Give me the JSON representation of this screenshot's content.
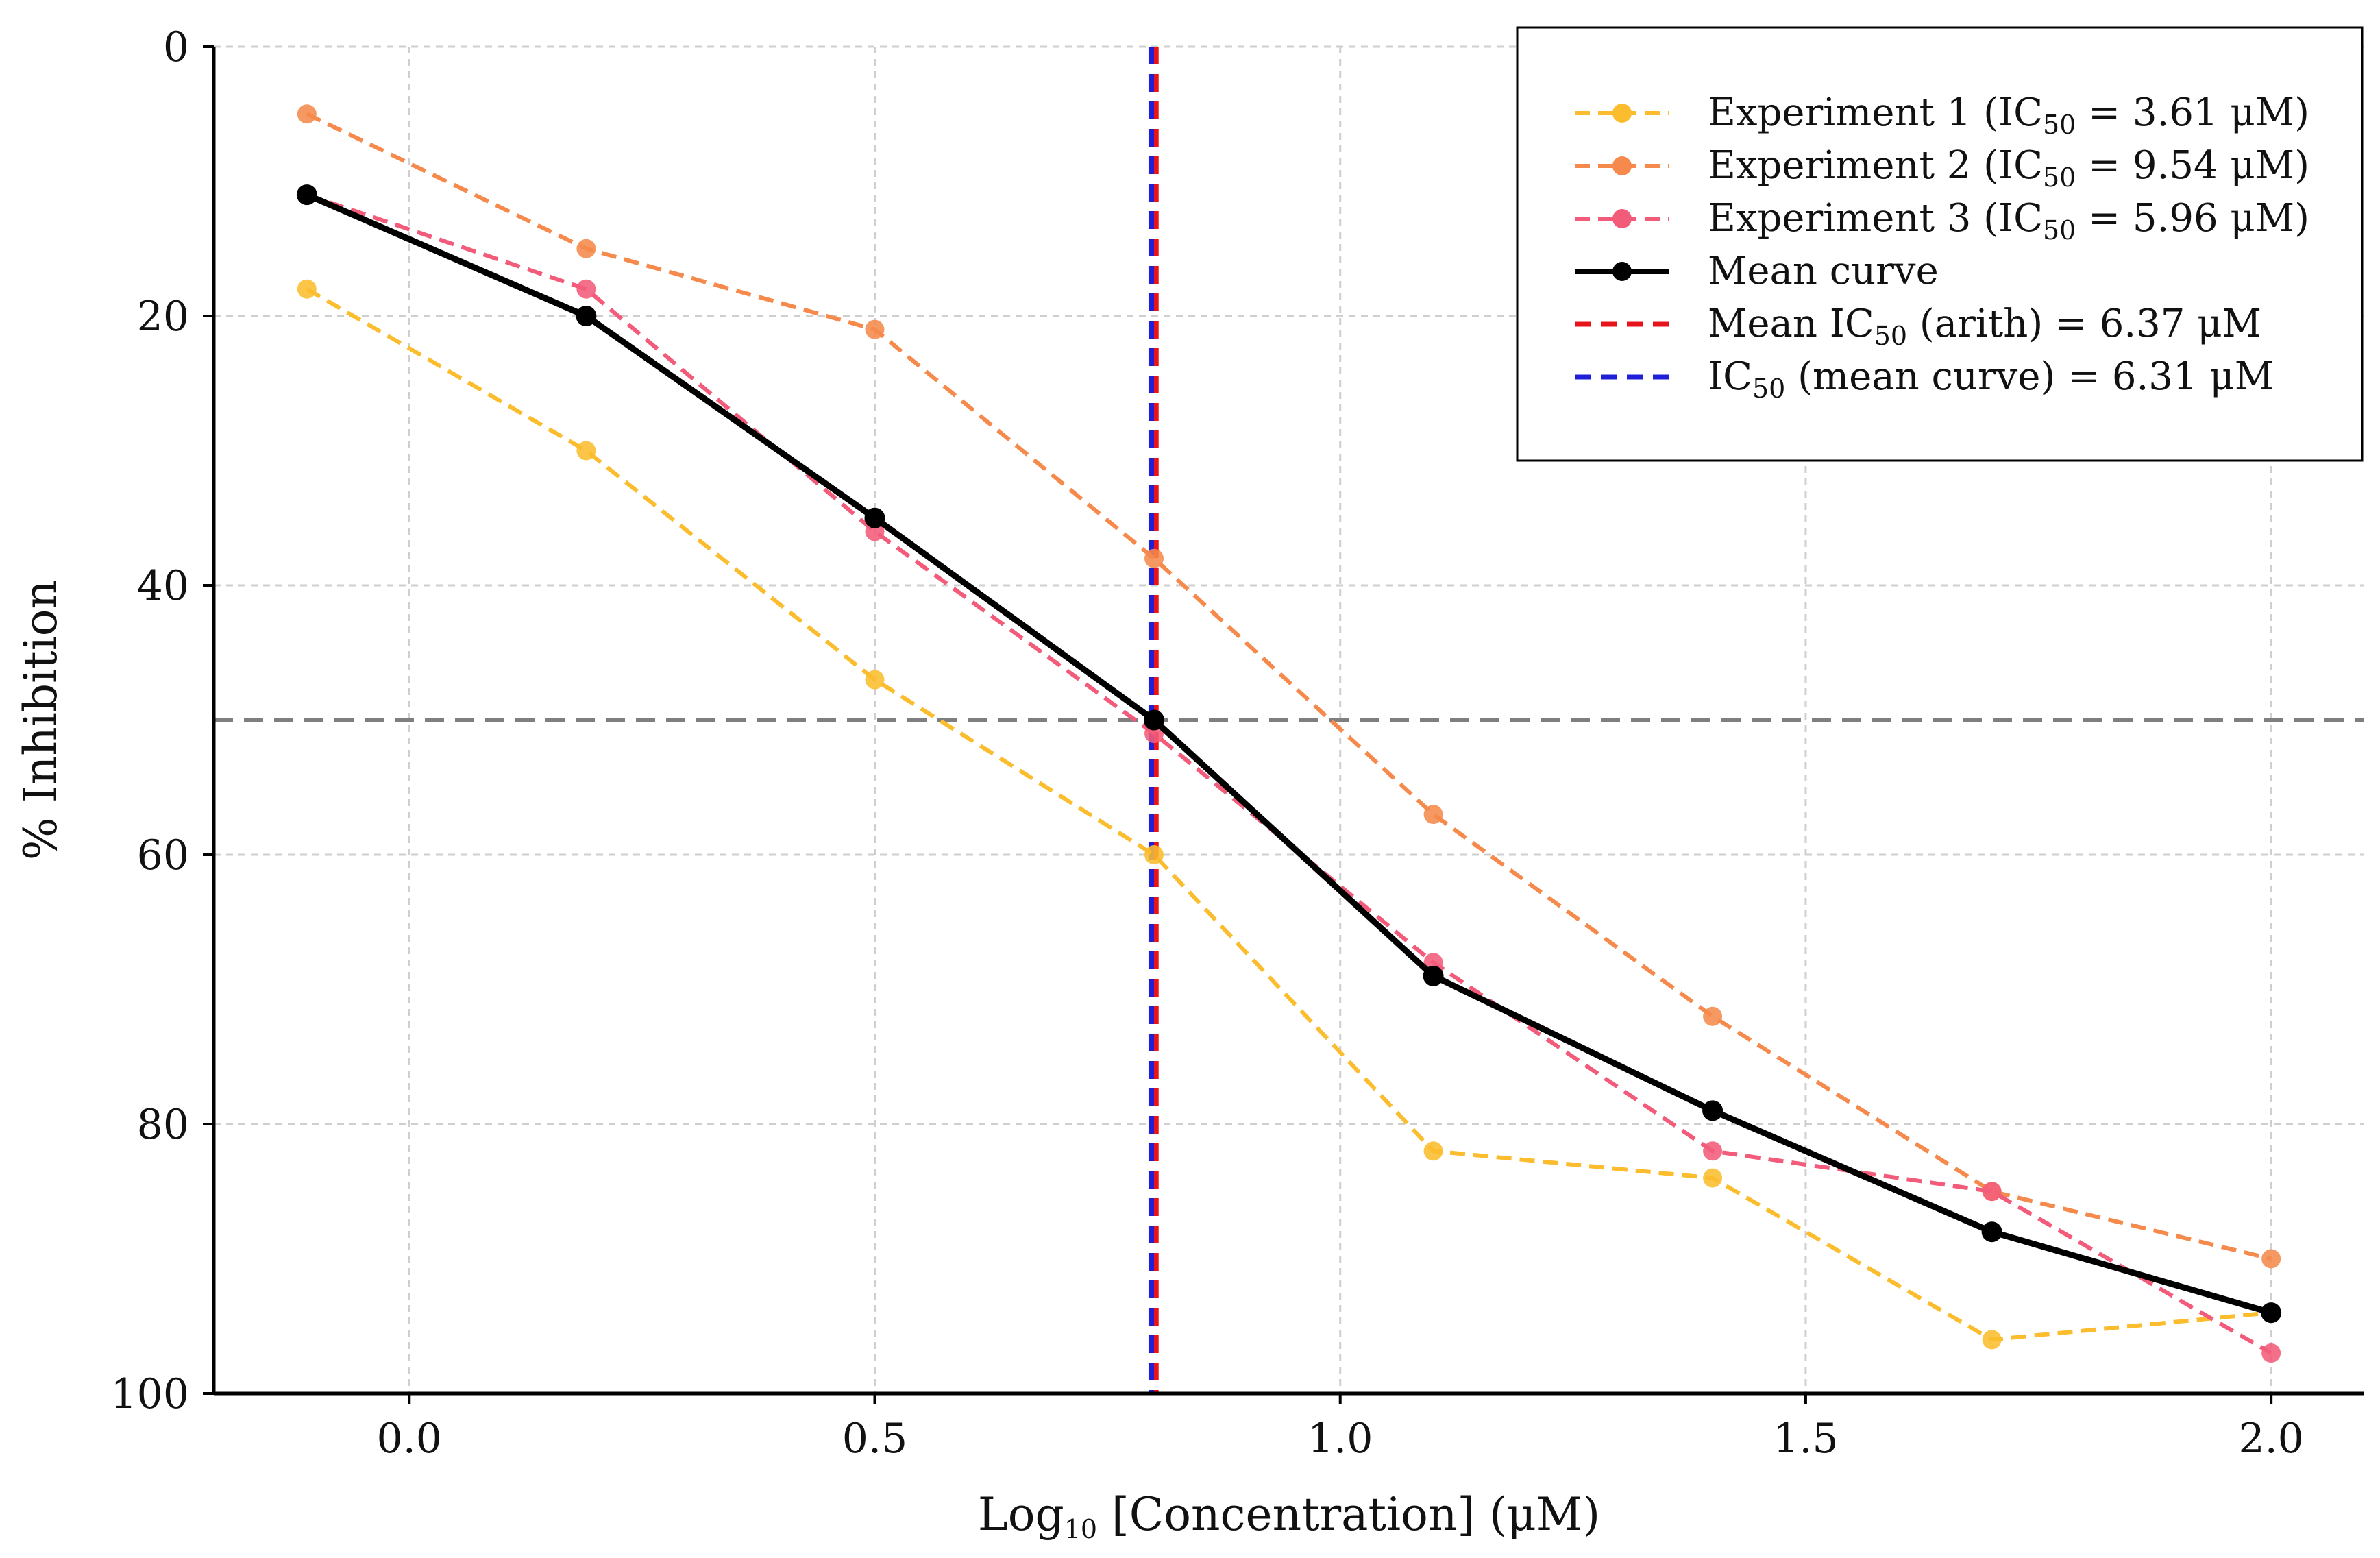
{
  "chart_data": {
    "type": "line",
    "xlabel": {
      "main": "Log",
      "sub": "10",
      "rest": " [Concentration] (μM)"
    },
    "ylabel": "% Inhibition",
    "xlim": [
      -0.21,
      2.1
    ],
    "ylim": [
      0,
      100
    ],
    "y_inverted": true,
    "x_ticks": [
      0.0,
      0.5,
      1.0,
      1.5,
      2.0
    ],
    "x_tick_labels": [
      "0.0",
      "0.5",
      "1.0",
      "1.5",
      "2.0"
    ],
    "y_ticks": [
      0,
      20,
      40,
      60,
      80,
      100
    ],
    "y_tick_labels": [
      "0",
      "20",
      "40",
      "60",
      "80",
      "100"
    ],
    "grid": true,
    "legend_position": "top-right",
    "x": [
      -0.11,
      0.19,
      0.5,
      0.8,
      1.1,
      1.4,
      1.7,
      2.0
    ],
    "series": [
      {
        "key": "exp1",
        "legend": {
          "main": "Experiment 1 (IC",
          "sub": "50",
          "rest": " = 3.61 μM)"
        },
        "color": "#FBBD2E",
        "style": "dashed-marker",
        "values": [
          18,
          30,
          47,
          60,
          82,
          84,
          96,
          94
        ]
      },
      {
        "key": "exp2",
        "legend": {
          "main": "Experiment 2 (IC",
          "sub": "50",
          "rest": " = 9.54 μM)"
        },
        "color": "#F58A4C",
        "style": "dashed-marker",
        "values": [
          5,
          15,
          21,
          38,
          57,
          72,
          85,
          90
        ]
      },
      {
        "key": "exp3",
        "legend": {
          "main": "Experiment 3 (IC",
          "sub": "50",
          "rest": " = 5.96 μM)"
        },
        "color": "#F25C7A",
        "style": "dashed-marker",
        "values": [
          11,
          18,
          36,
          51,
          68,
          82,
          85,
          97
        ]
      },
      {
        "key": "mean",
        "legend": {
          "main": "Mean curve",
          "sub": "",
          "rest": ""
        },
        "color": "#000000",
        "style": "solid-marker",
        "values": [
          11,
          20,
          35,
          50,
          69,
          79,
          88,
          94
        ]
      }
    ],
    "reference_lines": [
      {
        "key": "ic50-arith",
        "orientation": "vertical",
        "x": 0.802,
        "color": "#E8141B",
        "legend": {
          "main": "Mean IC",
          "sub": "50",
          "rest": " (arith) = 6.37 μM"
        }
      },
      {
        "key": "ic50-mean-curve",
        "orientation": "vertical",
        "x": 0.797,
        "color": "#1F1FD8",
        "legend": {
          "main": "IC",
          "sub": "50",
          "rest": " (mean curve) = 6.31 μM"
        }
      },
      {
        "key": "half-inhibition",
        "orientation": "horizontal",
        "y": 50,
        "color": "#7F7F7F",
        "legend": null
      }
    ]
  }
}
